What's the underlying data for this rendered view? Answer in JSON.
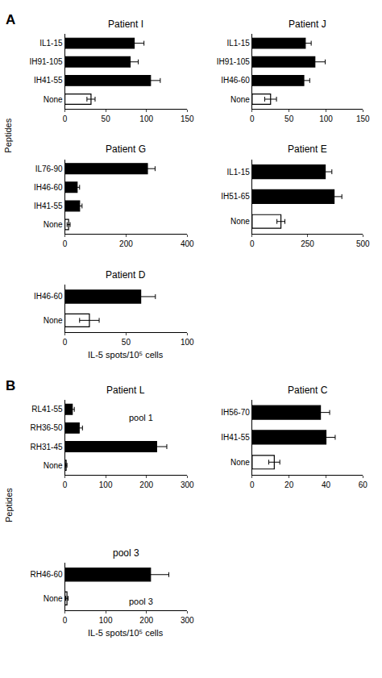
{
  "chart_data": [
    {
      "type": "bar",
      "orientation": "horizontal",
      "title": "Patient I",
      "categories": [
        "IL1-15",
        "IH91-105",
        "IH41-55",
        "None"
      ],
      "values": [
        85,
        80,
        105,
        32
      ],
      "errors": [
        12,
        10,
        12,
        5
      ],
      "colors": [
        "black",
        "black",
        "black",
        "white"
      ],
      "xlim": [
        0,
        150
      ],
      "xticks": [
        0,
        50,
        100,
        150
      ],
      "grid": false,
      "ylabel": "Peptides",
      "annotations": [
        "A"
      ]
    },
    {
      "type": "bar",
      "orientation": "horizontal",
      "title": "Patient J",
      "categories": [
        "IL1-15",
        "IH91-105",
        "IH46-60",
        "None"
      ],
      "values": [
        72,
        85,
        70,
        25
      ],
      "errors": [
        8,
        14,
        8,
        8
      ],
      "colors": [
        "black",
        "black",
        "black",
        "white"
      ],
      "xlim": [
        0,
        150
      ],
      "xticks": [
        0,
        50,
        100,
        150
      ],
      "grid": false
    },
    {
      "type": "bar",
      "orientation": "horizontal",
      "title": "Patient G",
      "categories": [
        "IL76-90",
        "IH46-60",
        "IH41-55",
        "None"
      ],
      "values": [
        270,
        40,
        48,
        12
      ],
      "errors": [
        25,
        8,
        8,
        5
      ],
      "colors": [
        "black",
        "black",
        "black",
        "white"
      ],
      "xlim": [
        0,
        400
      ],
      "xticks": [
        0,
        200,
        400
      ],
      "grid": false
    },
    {
      "type": "bar",
      "orientation": "horizontal",
      "title": "Patient E",
      "categories": [
        "IL1-15",
        "IH51-65",
        "None"
      ],
      "values": [
        330,
        370,
        130
      ],
      "errors": [
        30,
        35,
        18
      ],
      "colors": [
        "black",
        "black",
        "white"
      ],
      "xlim": [
        0,
        500
      ],
      "xticks": [
        0,
        250,
        500
      ],
      "grid": false
    },
    {
      "type": "bar",
      "orientation": "horizontal",
      "title": "Patient D",
      "categories": [
        "IH46-60",
        "None"
      ],
      "values": [
        62,
        20
      ],
      "errors": [
        12,
        8
      ],
      "colors": [
        "black",
        "white"
      ],
      "xlim": [
        0,
        100
      ],
      "xticks": [
        0,
        50,
        100
      ],
      "grid": false,
      "xlabel": "IL-5 spots/10⁵ cells"
    },
    {
      "type": "bar",
      "orientation": "horizontal",
      "title": "Patient L",
      "subtitle": "pool 1",
      "categories": [
        "RL41-55",
        "RH36-50",
        "RH31-45",
        "None"
      ],
      "values": [
        18,
        35,
        225,
        3
      ],
      "errors": [
        5,
        8,
        25,
        2
      ],
      "colors": [
        "black",
        "black",
        "black",
        "white"
      ],
      "xlim": [
        0,
        300
      ],
      "xticks": [
        0,
        100,
        200,
        300
      ],
      "grid": false,
      "ylabel": "Peptides",
      "annotations": [
        "B"
      ]
    },
    {
      "type": "bar",
      "orientation": "horizontal",
      "title": "Patient C",
      "categories": [
        "IH56-70",
        "IH41-55",
        "None"
      ],
      "values": [
        37,
        40,
        12
      ],
      "errors": [
        5,
        5,
        3
      ],
      "colors": [
        "black",
        "black",
        "white"
      ],
      "xlim": [
        0,
        60
      ],
      "xticks": [
        0,
        20,
        40,
        60
      ],
      "grid": false
    },
    {
      "type": "bar",
      "orientation": "horizontal",
      "title": "pool 3",
      "subtitle": "pool 3",
      "categories": [
        "RH46-60",
        "None"
      ],
      "values": [
        210,
        5
      ],
      "errors": [
        45,
        3
      ],
      "colors": [
        "black",
        "white"
      ],
      "xlim": [
        0,
        300
      ],
      "xticks": [
        0,
        100,
        200,
        300
      ],
      "grid": false,
      "xlabel": "IL-5 spots/10⁵ cells"
    }
  ]
}
